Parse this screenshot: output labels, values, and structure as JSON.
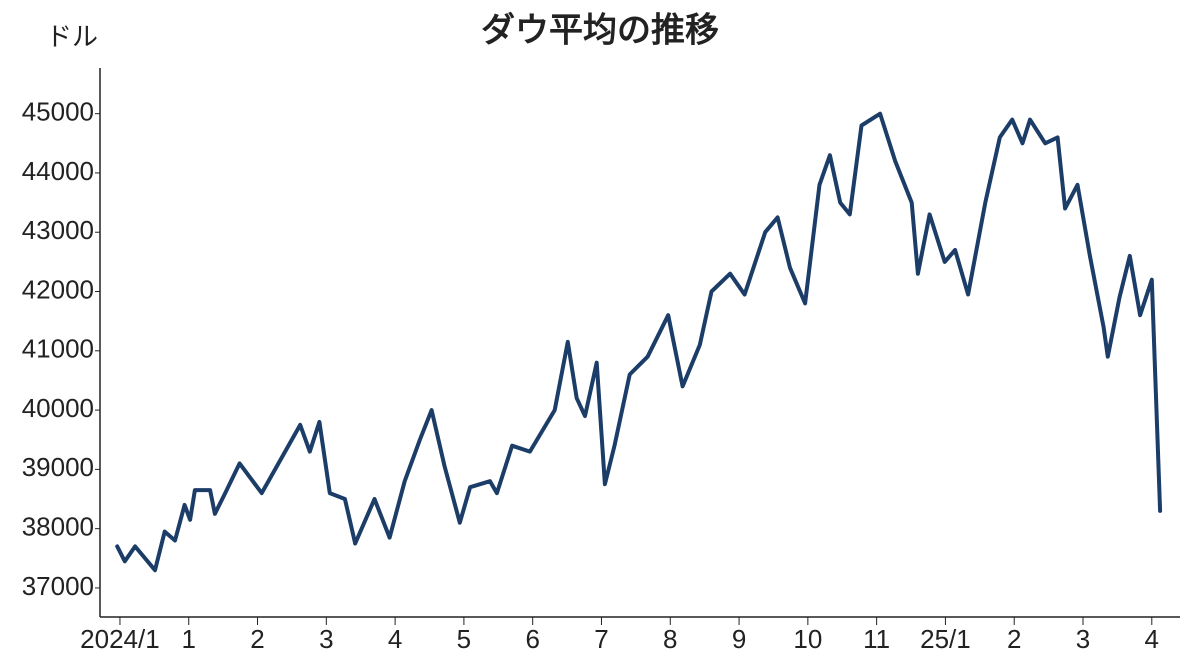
{
  "chart_data": {
    "type": "line",
    "title": "ダウ平均の推移",
    "y_unit": "ドル",
    "x": [
      -0.04,
      0.07,
      0.22,
      0.51,
      0.65,
      0.8,
      0.94,
      1.02,
      1.09,
      1.31,
      1.38,
      1.53,
      1.74,
      2.06,
      2.62,
      2.76,
      2.9,
      3.05,
      3.27,
      3.42,
      3.7,
      3.92,
      4.14,
      4.36,
      4.53,
      4.72,
      4.94,
      5.09,
      5.38,
      5.48,
      5.7,
      5.96,
      6.32,
      6.51,
      6.64,
      6.76,
      6.93,
      7.05,
      7.19,
      7.41,
      7.67,
      7.97,
      8.18,
      8.43,
      8.6,
      8.87,
      9.08,
      9.38,
      9.56,
      9.74,
      9.96,
      10.17,
      10.32,
      10.47,
      10.61,
      10.78,
      11.05,
      11.27,
      11.51,
      11.6,
      11.77,
      11.99,
      12.14,
      12.33,
      12.58,
      12.79,
      12.97,
      13.12,
      13.23,
      13.45,
      13.63,
      13.74,
      13.92,
      14.1,
      14.3,
      14.36,
      14.53,
      14.68,
      14.83,
      15.0,
      15.12
    ],
    "series": [
      {
        "name": "ダウ平均",
        "color": "#1b3d68",
        "values": [
          37700,
          37450,
          37700,
          37300,
          37950,
          37800,
          38400,
          38150,
          38650,
          38650,
          38250,
          38600,
          39100,
          38600,
          39750,
          39300,
          39800,
          38600,
          38500,
          37750,
          38500,
          37850,
          38800,
          39500,
          40000,
          39050,
          38100,
          38700,
          38800,
          38600,
          39400,
          39300,
          40000,
          41150,
          40200,
          39900,
          40800,
          38750,
          39400,
          40600,
          40900,
          41600,
          40400,
          41100,
          42000,
          42300,
          41950,
          43000,
          43250,
          42400,
          41800,
          43800,
          44300,
          43500,
          43300,
          44800,
          45000,
          44200,
          43500,
          42300,
          43300,
          42500,
          42700,
          41950,
          43500,
          44600,
          44900,
          44500,
          44900,
          44500,
          44600,
          43400,
          43800,
          42600,
          41400,
          40900,
          41900,
          42600,
          41600,
          42200,
          38300
        ]
      }
    ],
    "xlim": [
      -0.29,
      15.41
    ],
    "xticks": [
      {
        "value": 0,
        "label": "2024/1"
      },
      1,
      2,
      3,
      4,
      5,
      6,
      7,
      8,
      9,
      10,
      11,
      {
        "value": 12,
        "label": "25/1"
      },
      {
        "value": 13,
        "label": "2"
      },
      {
        "value": 14,
        "label": "3"
      },
      {
        "value": 15,
        "label": "4"
      }
    ],
    "ylim": [
      36510,
      45770
    ],
    "yticks": [
      37000,
      38000,
      39000,
      40000,
      41000,
      42000,
      43000,
      44000,
      45000
    ],
    "grid": false
  }
}
